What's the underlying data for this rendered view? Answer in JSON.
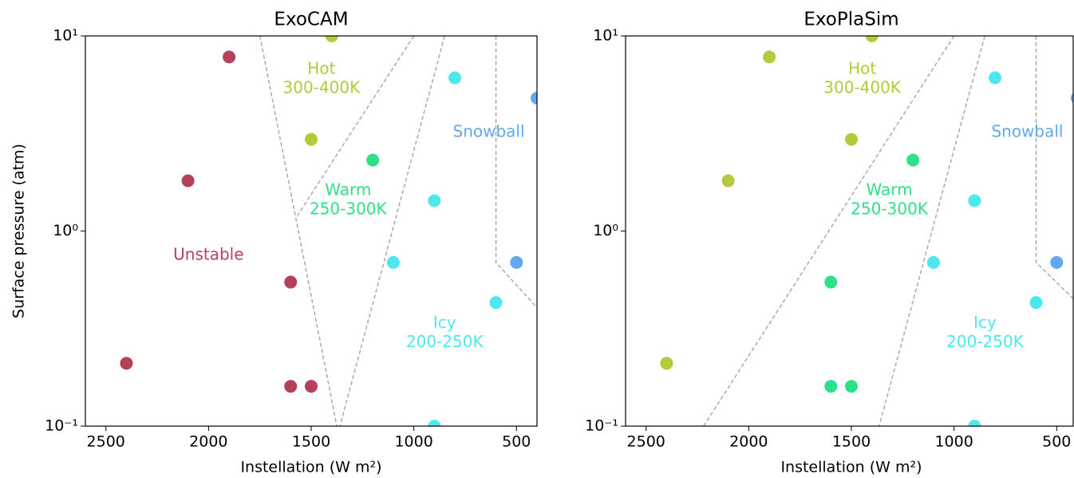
{
  "chart_data": [
    {
      "type": "scatter",
      "title": "ExoCAM",
      "xlabel": "Instellation (W m²)",
      "ylabel": "Surface pressure (atm)",
      "xlim": [
        2600,
        400
      ],
      "xticks": [
        2500,
        2000,
        1500,
        1000,
        500
      ],
      "ylim": [
        0.1,
        10
      ],
      "yscale": "log",
      "yticks": [
        {
          "value": 10,
          "label": "10¹"
        },
        {
          "value": 1,
          "label": "10⁰"
        },
        {
          "value": 0.1,
          "label": "10⁻¹"
        }
      ],
      "x": [
        1900,
        1400,
        800,
        400,
        1500,
        1200,
        2100,
        900,
        1100,
        500,
        1600,
        600,
        2400,
        1600,
        1500,
        900
      ],
      "y": [
        7.8,
        10,
        6.1,
        4.8,
        2.95,
        2.31,
        1.81,
        1.43,
        0.69,
        0.69,
        0.547,
        0.43,
        0.21,
        0.16,
        0.16,
        0.1
      ],
      "colors": [
        "#b5405a",
        "#b5c93a",
        "#4de8ee",
        "#62a8f0",
        "#b5c93a",
        "#2ee08a",
        "#b5405a",
        "#4de8ee",
        "#4de8ee",
        "#62a8f0",
        "#b5405a",
        "#4de8ee",
        "#b5405a",
        "#b5405a",
        "#b5405a",
        "#4de8ee"
      ],
      "boundaries": [
        {
          "x": [
            1750,
            1375
          ],
          "y": [
            10,
            0.1
          ]
        },
        {
          "x": [
            1000,
            1567
          ],
          "y": [
            10,
            1.2
          ]
        },
        {
          "x": [
            850,
            1360
          ],
          "y": [
            10,
            0.1
          ]
        },
        {
          "x": [
            600,
            600,
            400
          ],
          "y": [
            10,
            0.69,
            0.405
          ]
        }
      ],
      "annotations": [
        {
          "text": [
            "Hot",
            "300-400K"
          ],
          "x": 1450,
          "y": 6.0,
          "color": "#b5c93a"
        },
        {
          "text": [
            "Snowball"
          ],
          "x": 635,
          "y": 3.2,
          "color": "#62a8f0"
        },
        {
          "text": [
            "Warm",
            "250-300K"
          ],
          "x": 1320,
          "y": 1.44,
          "color": "#2ee08a"
        },
        {
          "text": [
            "Unstable"
          ],
          "x": 2000,
          "y": 0.75,
          "color": "#b5405a"
        },
        {
          "text": [
            "Icy",
            "200-250K"
          ],
          "x": 850,
          "y": 0.3,
          "color": "#4de8ee"
        }
      ]
    },
    {
      "type": "scatter",
      "title": "ExoPlaSim",
      "xlabel": "Instellation (W m²)",
      "xlim": [
        2600,
        400
      ],
      "xticks": [
        2500,
        2000,
        1500,
        1000,
        500
      ],
      "ylim": [
        0.1,
        10
      ],
      "yscale": "log",
      "yticks": [
        {
          "value": 10,
          "label": "10¹"
        },
        {
          "value": 1,
          "label": "10⁰"
        },
        {
          "value": 0.1,
          "label": "10⁻¹"
        }
      ],
      "x": [
        1900,
        1400,
        800,
        400,
        1500,
        1200,
        2100,
        900,
        1100,
        500,
        1600,
        600,
        2400,
        1600,
        1500,
        900
      ],
      "y": [
        7.8,
        10,
        6.1,
        4.8,
        2.95,
        2.31,
        1.81,
        1.43,
        0.69,
        0.69,
        0.547,
        0.43,
        0.21,
        0.16,
        0.16,
        0.1
      ],
      "colors": [
        "#b5c93a",
        "#b5c93a",
        "#4de8ee",
        "#62a8f0",
        "#b5c93a",
        "#2ee08a",
        "#b5c93a",
        "#4de8ee",
        "#4de8ee",
        "#62a8f0",
        "#2ee08a",
        "#4de8ee",
        "#b5c93a",
        "#2ee08a",
        "#2ee08a",
        "#4de8ee"
      ],
      "boundaries": [
        {
          "x": [
            1000,
            2220
          ],
          "y": [
            10,
            0.1
          ]
        },
        {
          "x": [
            850,
            1365
          ],
          "y": [
            10,
            0.1
          ]
        },
        {
          "x": [
            600,
            600,
            400
          ],
          "y": [
            10,
            0.69,
            0.43
          ]
        }
      ],
      "annotations": [
        {
          "text": [
            "Hot",
            "300-400K"
          ],
          "x": 1447,
          "y": 6.0,
          "color": "#b5c93a"
        },
        {
          "text": [
            "Snowball"
          ],
          "x": 643,
          "y": 3.2,
          "color": "#62a8f0"
        },
        {
          "text": [
            "Warm",
            "250-300K"
          ],
          "x": 1315,
          "y": 1.44,
          "color": "#2ee08a"
        },
        {
          "text": [
            "Icy",
            "200-250K"
          ],
          "x": 849,
          "y": 0.3,
          "color": "#4de8ee"
        }
      ]
    }
  ]
}
